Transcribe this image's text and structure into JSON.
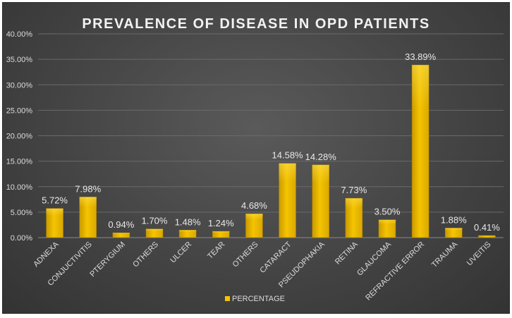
{
  "chart_data": {
    "type": "bar",
    "title": "PREVALENCE OF DISEASE IN OPD PATIENTS",
    "categories": [
      "ADNEXA",
      "CONJUCTIVITIS",
      "PTERYGIUM",
      "OTHERS",
      "ULCER",
      "TEAR",
      "OTHERS",
      "CATARACT",
      "PSEUDOPHAKIA",
      "RETINA",
      "GLAUCOMA",
      "REFRACTIVE ERROR",
      "TRAUMA",
      "UVEITIS"
    ],
    "series": [
      {
        "name": "PERCENTAGE",
        "values": [
          5.72,
          7.98,
          0.94,
          1.7,
          1.48,
          1.24,
          4.68,
          14.58,
          14.28,
          7.73,
          3.5,
          33.89,
          1.88,
          0.41
        ],
        "labels": [
          "5.72%",
          "7.98%",
          "0.94%",
          "1.70%",
          "1.48%",
          "1.24%",
          "4.68%",
          "14.58%",
          "14.28%",
          "7.73%",
          "3.50%",
          "33.89%",
          "1.88%",
          "0.41%"
        ],
        "color": "#f5c400"
      }
    ],
    "y_ticks": [
      "0.00%",
      "5.00%",
      "10.00%",
      "15.00%",
      "20.00%",
      "25.00%",
      "30.00%",
      "35.00%",
      "40.00%"
    ],
    "ylim": [
      0,
      40
    ],
    "xlabel": "",
    "ylabel": "",
    "grid": true,
    "legend_position": "bottom",
    "colors": {
      "background": "#444444",
      "grid": "#6a6a6a",
      "text": "#dcdcdc",
      "bar": "#f5c400"
    }
  }
}
